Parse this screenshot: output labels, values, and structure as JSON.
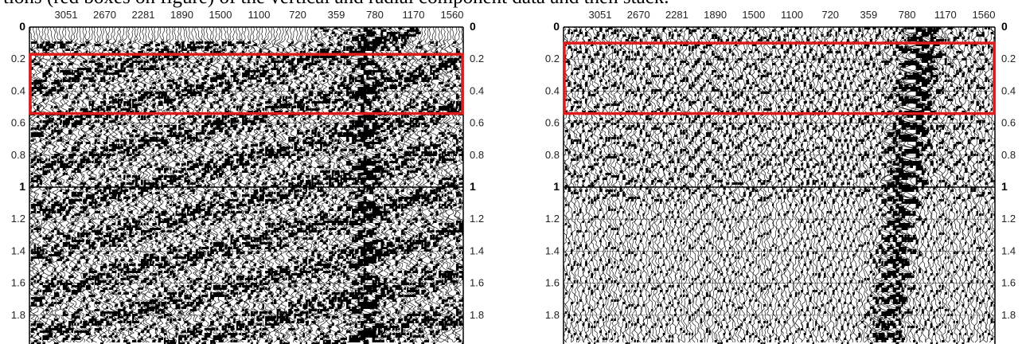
{
  "caption": "tions (red boxes on figure) of the vertical and radial component data and then stack.",
  "chart_data": [
    {
      "type": "heatmap",
      "panel": "left",
      "x_tick_labels": [
        "3051",
        "2670",
        "2281",
        "1890",
        "1500",
        "1100",
        "720",
        "359",
        "780",
        "1170",
        "1560"
      ],
      "y_tick_labels": [
        "0",
        "0.2",
        "0.4",
        "0.6",
        "0.8",
        "1",
        "1.2",
        "1.4",
        "1.6",
        "1.8"
      ],
      "y_ticks": [
        0,
        0.2,
        0.4,
        0.6,
        0.8,
        1.0,
        1.2,
        1.4,
        1.6,
        1.8
      ],
      "ylim": [
        0,
        1.98
      ],
      "bold_y_ticks": [
        0,
        1
      ],
      "highlight_window": {
        "y_start": 0.17,
        "y_end": 0.54,
        "color": "#e01b1b"
      },
      "wiggle_style": "strong dipping reflections and ground roll"
    },
    {
      "type": "heatmap",
      "panel": "right",
      "x_tick_labels": [
        "3051",
        "2670",
        "2281",
        "1890",
        "1500",
        "1100",
        "720",
        "359",
        "780",
        "1170",
        "1560"
      ],
      "y_tick_labels": [
        "0",
        "0.2",
        "0.4",
        "0.6",
        "0.8",
        "1",
        "1.2",
        "1.4",
        "1.6",
        "1.8"
      ],
      "y_ticks": [
        0,
        0.2,
        0.4,
        0.6,
        0.8,
        1.0,
        1.2,
        1.4,
        1.6,
        1.8
      ],
      "ylim": [
        0,
        1.98
      ],
      "bold_y_ticks": [
        0,
        1
      ],
      "highlight_window": {
        "y_start": 0.1,
        "y_end": 0.54,
        "color": "#e01b1b"
      },
      "wiggle_style": "V-shaped moveout converging near source"
    }
  ]
}
